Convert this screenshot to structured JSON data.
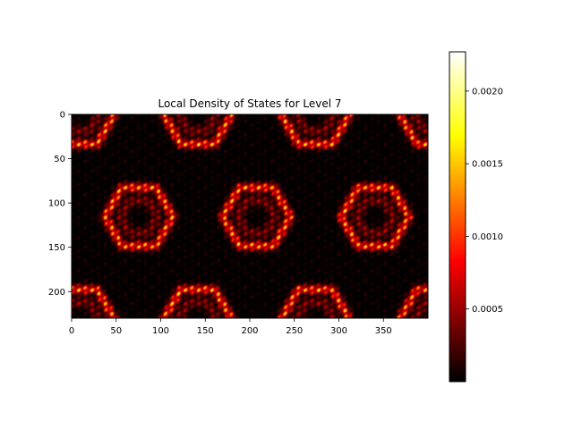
{
  "chart_data": {
    "type": "heatmap",
    "title": "Local Density of States for Level 7",
    "xlabel": "",
    "ylabel": "",
    "x_range": [
      0,
      400
    ],
    "y_range": [
      0,
      230
    ],
    "y_inverted": true,
    "x_ticks": [
      0,
      50,
      100,
      150,
      200,
      250,
      300,
      350
    ],
    "x_tick_labels": [
      "0",
      "50",
      "100",
      "150",
      "200",
      "250",
      "300",
      "350"
    ],
    "y_ticks": [
      0,
      50,
      100,
      150,
      200
    ],
    "y_tick_labels": [
      "0",
      "50",
      "100",
      "150",
      "200"
    ],
    "colormap": "hot",
    "colorbar": {
      "vmin": 0.0,
      "vmax": 0.00227,
      "ticks": [
        0.0005,
        0.001,
        0.0015,
        0.002
      ],
      "tick_labels": [
        "0.0005",
        "0.0010",
        "0.0015",
        "0.0020"
      ]
    },
    "pattern": {
      "description_free": true,
      "hexagon_centers": [
        [
          75,
          115
        ],
        [
          207,
          115
        ],
        [
          340,
          115
        ],
        [
          141,
          0
        ],
        [
          273,
          0
        ],
        [
          141,
          230
        ],
        [
          273,
          230
        ],
        [
          9,
          0
        ],
        [
          9,
          230
        ],
        [
          406,
          0
        ],
        [
          406,
          230
        ]
      ],
      "ring_radius": 38,
      "grid": false
    }
  }
}
